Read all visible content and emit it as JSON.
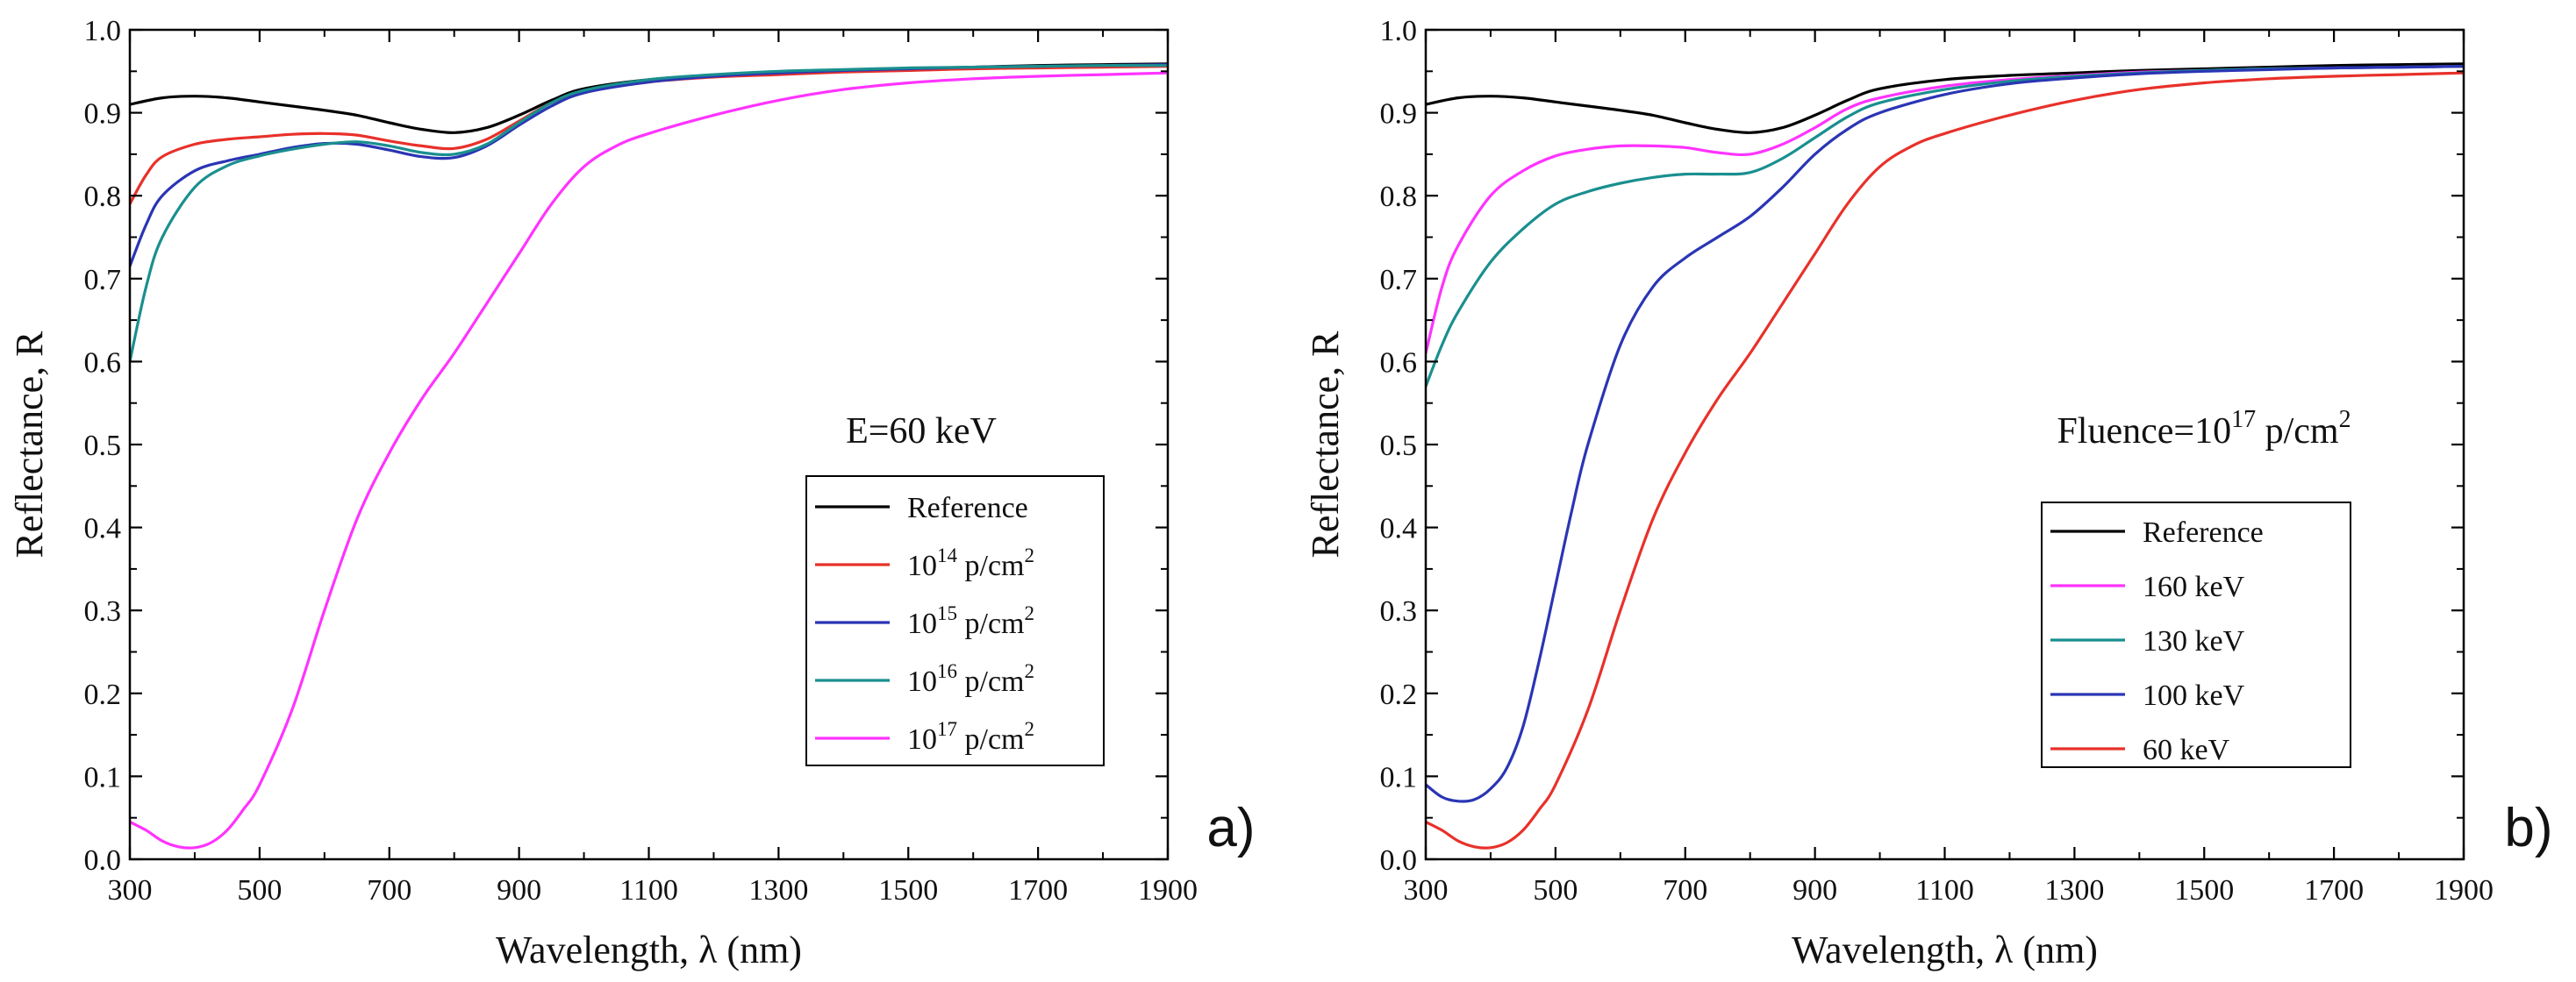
{
  "chart_data": [
    {
      "type": "line",
      "panel_label": "a)",
      "annotation": "E=60 keV",
      "xlabel": "Wavelength, λ (nm)",
      "ylabel": "Reflectance, R",
      "xlim": [
        300,
        1900
      ],
      "ylim": [
        0.0,
        1.0
      ],
      "xticks": [
        "300",
        "500",
        "700",
        "900",
        "1100",
        "1300",
        "1500",
        "1700",
        "1900"
      ],
      "yticks": [
        "0.0",
        "0.1",
        "0.2",
        "0.3",
        "0.4",
        "0.5",
        "0.6",
        "0.7",
        "0.8",
        "0.9",
        "1.0"
      ],
      "legend_position": "lower-right",
      "series": [
        {
          "name": "Reference",
          "color": "#000000",
          "x": [
            300,
            350,
            400,
            450,
            500,
            550,
            600,
            650,
            700,
            750,
            800,
            850,
            900,
            950,
            1000,
            1100,
            1200,
            1300,
            1400,
            1500,
            1600,
            1700,
            1800,
            1900
          ],
          "y": [
            0.91,
            0.918,
            0.92,
            0.918,
            0.913,
            0.908,
            0.903,
            0.897,
            0.888,
            0.88,
            0.876,
            0.882,
            0.897,
            0.915,
            0.929,
            0.94,
            0.945,
            0.948,
            0.951,
            0.953,
            0.955,
            0.957,
            0.958,
            0.959
          ]
        },
        {
          "name": "10^14 p/cm^2",
          "label_base": "10",
          "label_exp": "14",
          "label_unit": " p/cm",
          "label_unit_exp": "2",
          "color": "#e8312a",
          "x": [
            300,
            325,
            350,
            400,
            450,
            500,
            550,
            600,
            650,
            700,
            750,
            800,
            850,
            900,
            950,
            1000,
            1100,
            1200,
            1300,
            1400,
            1500,
            1600,
            1700,
            1800,
            1900
          ],
          "y": [
            0.79,
            0.825,
            0.847,
            0.862,
            0.868,
            0.871,
            0.874,
            0.875,
            0.873,
            0.866,
            0.86,
            0.857,
            0.868,
            0.89,
            0.912,
            0.925,
            0.937,
            0.943,
            0.946,
            0.949,
            0.951,
            0.953,
            0.954,
            0.955,
            0.956
          ]
        },
        {
          "name": "10^15 p/cm^2",
          "label_base": "10",
          "label_exp": "15",
          "label_unit": " p/cm",
          "label_unit_exp": "2",
          "color": "#2a35b4",
          "x": [
            300,
            325,
            350,
            400,
            450,
            500,
            550,
            600,
            650,
            700,
            750,
            800,
            850,
            900,
            950,
            1000,
            1100,
            1200,
            1300,
            1400,
            1500,
            1600,
            1700,
            1800,
            1900
          ],
          "y": [
            0.715,
            0.765,
            0.8,
            0.83,
            0.842,
            0.85,
            0.858,
            0.863,
            0.862,
            0.855,
            0.847,
            0.846,
            0.86,
            0.885,
            0.908,
            0.924,
            0.937,
            0.944,
            0.948,
            0.951,
            0.953,
            0.955,
            0.956,
            0.957,
            0.958
          ]
        },
        {
          "name": "10^16 p/cm^2",
          "label_base": "10",
          "label_exp": "16",
          "label_unit": " p/cm",
          "label_unit_exp": "2",
          "color": "#1a8f8f",
          "x": [
            300,
            325,
            350,
            400,
            450,
            500,
            550,
            600,
            650,
            700,
            750,
            800,
            850,
            900,
            950,
            1000,
            1100,
            1200,
            1300,
            1400,
            1500,
            1600,
            1700,
            1800,
            1900
          ],
          "y": [
            0.6,
            0.69,
            0.75,
            0.81,
            0.836,
            0.848,
            0.856,
            0.862,
            0.865,
            0.86,
            0.852,
            0.85,
            0.862,
            0.888,
            0.912,
            0.927,
            0.94,
            0.946,
            0.95,
            0.952,
            0.954,
            0.955,
            0.956,
            0.957,
            0.957
          ]
        },
        {
          "name": "10^17 p/cm^2",
          "label_base": "10",
          "label_exp": "17",
          "label_unit": " p/cm",
          "label_unit_exp": "2",
          "color": "#ff33ff",
          "x": [
            300,
            325,
            350,
            375,
            400,
            425,
            450,
            475,
            500,
            550,
            600,
            650,
            700,
            750,
            800,
            850,
            900,
            950,
            1000,
            1050,
            1100,
            1200,
            1300,
            1400,
            1500,
            1600,
            1700,
            1800,
            1900
          ],
          "y": [
            0.045,
            0.035,
            0.022,
            0.015,
            0.014,
            0.02,
            0.035,
            0.06,
            0.09,
            0.18,
            0.3,
            0.41,
            0.49,
            0.555,
            0.61,
            0.67,
            0.73,
            0.79,
            0.835,
            0.86,
            0.875,
            0.897,
            0.915,
            0.928,
            0.936,
            0.941,
            0.944,
            0.946,
            0.948
          ]
        }
      ]
    },
    {
      "type": "line",
      "panel_label": "b)",
      "annotation": "Fluence=10^17 p/cm^2",
      "annotation_prefix": "Fluence=10",
      "annotation_exp": "17",
      "annotation_unit": " p/cm",
      "annotation_unit_exp": "2",
      "xlabel": "Wavelength, λ (nm)",
      "ylabel": "Reflectance, R",
      "xlim": [
        300,
        1900
      ],
      "ylim": [
        0.0,
        1.0
      ],
      "xticks": [
        "300",
        "500",
        "700",
        "900",
        "1100",
        "1300",
        "1500",
        "1700",
        "1900"
      ],
      "yticks": [
        "0.0",
        "0.1",
        "0.2",
        "0.3",
        "0.4",
        "0.5",
        "0.6",
        "0.7",
        "0.8",
        "0.9",
        "1.0"
      ],
      "legend_position": "lower-right",
      "series": [
        {
          "name": "Reference",
          "color": "#000000",
          "x": [
            300,
            350,
            400,
            450,
            500,
            550,
            600,
            650,
            700,
            750,
            800,
            850,
            900,
            950,
            1000,
            1100,
            1200,
            1300,
            1400,
            1500,
            1600,
            1700,
            1800,
            1900
          ],
          "y": [
            0.91,
            0.918,
            0.92,
            0.918,
            0.913,
            0.908,
            0.903,
            0.897,
            0.888,
            0.88,
            0.876,
            0.882,
            0.897,
            0.915,
            0.929,
            0.94,
            0.945,
            0.948,
            0.951,
            0.953,
            0.955,
            0.957,
            0.958,
            0.959
          ]
        },
        {
          "name": "160 keV",
          "color": "#ff33ff",
          "x": [
            300,
            325,
            350,
            400,
            450,
            500,
            550,
            600,
            650,
            700,
            750,
            800,
            850,
            900,
            950,
            1000,
            1100,
            1200,
            1300,
            1400,
            1500,
            1600,
            1700,
            1800,
            1900
          ],
          "y": [
            0.61,
            0.69,
            0.74,
            0.8,
            0.83,
            0.848,
            0.856,
            0.86,
            0.86,
            0.858,
            0.852,
            0.85,
            0.862,
            0.882,
            0.905,
            0.918,
            0.932,
            0.94,
            0.945,
            0.949,
            0.951,
            0.953,
            0.954,
            0.955,
            0.956
          ]
        },
        {
          "name": "130 keV",
          "color": "#1a8f8f",
          "x": [
            300,
            325,
            350,
            400,
            450,
            500,
            550,
            600,
            650,
            700,
            750,
            800,
            850,
            900,
            950,
            1000,
            1100,
            1200,
            1300,
            1400,
            1500,
            1600,
            1700,
            1800,
            1900
          ],
          "y": [
            0.57,
            0.62,
            0.66,
            0.72,
            0.76,
            0.79,
            0.805,
            0.815,
            0.822,
            0.826,
            0.826,
            0.828,
            0.845,
            0.87,
            0.895,
            0.912,
            0.928,
            0.938,
            0.944,
            0.948,
            0.951,
            0.953,
            0.954,
            0.955,
            0.956
          ]
        },
        {
          "name": "100 keV",
          "color": "#2a35b4",
          "x": [
            300,
            325,
            350,
            375,
            400,
            425,
            450,
            475,
            500,
            525,
            550,
            600,
            650,
            700,
            750,
            800,
            850,
            900,
            950,
            1000,
            1100,
            1200,
            1300,
            1400,
            1500,
            1600,
            1700,
            1800,
            1900
          ],
          "y": [
            0.09,
            0.075,
            0.07,
            0.072,
            0.085,
            0.11,
            0.16,
            0.24,
            0.33,
            0.42,
            0.5,
            0.62,
            0.69,
            0.725,
            0.75,
            0.775,
            0.81,
            0.85,
            0.88,
            0.9,
            0.922,
            0.935,
            0.942,
            0.947,
            0.95,
            0.952,
            0.954,
            0.955,
            0.956
          ]
        },
        {
          "name": "60 keV",
          "color": "#e8312a",
          "x": [
            300,
            325,
            350,
            375,
            400,
            425,
            450,
            475,
            500,
            550,
            600,
            650,
            700,
            750,
            800,
            850,
            900,
            950,
            1000,
            1050,
            1100,
            1200,
            1300,
            1400,
            1500,
            1600,
            1700,
            1800,
            1900
          ],
          "y": [
            0.045,
            0.035,
            0.022,
            0.015,
            0.014,
            0.02,
            0.035,
            0.06,
            0.09,
            0.18,
            0.3,
            0.41,
            0.49,
            0.555,
            0.61,
            0.67,
            0.73,
            0.79,
            0.835,
            0.86,
            0.875,
            0.897,
            0.915,
            0.928,
            0.936,
            0.941,
            0.944,
            0.946,
            0.948
          ]
        }
      ]
    }
  ]
}
